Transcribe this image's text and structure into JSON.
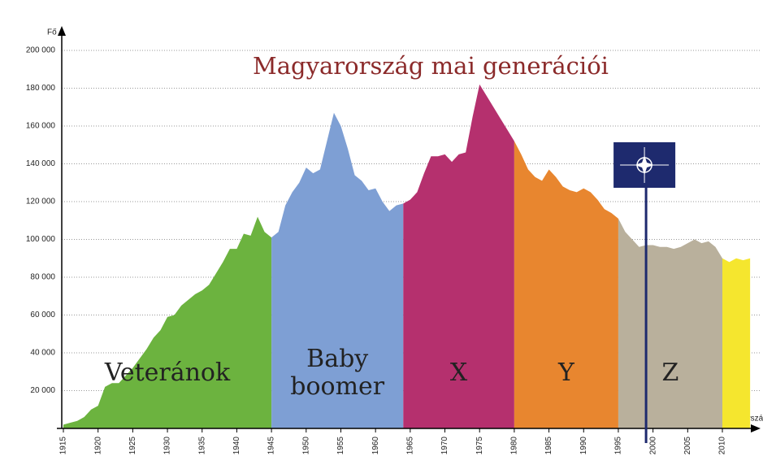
{
  "chart_data": {
    "type": "area",
    "title": "Magyarország mai generációi",
    "x_label": "Évszám",
    "y_label": "Fő",
    "x": [
      1915,
      1916,
      1917,
      1918,
      1919,
      1920,
      1921,
      1922,
      1923,
      1924,
      1925,
      1926,
      1927,
      1928,
      1929,
      1930,
      1931,
      1932,
      1933,
      1934,
      1935,
      1936,
      1937,
      1938,
      1939,
      1940,
      1941,
      1942,
      1943,
      1944,
      1945,
      1946,
      1947,
      1948,
      1949,
      1950,
      1951,
      1952,
      1953,
      1954,
      1955,
      1956,
      1957,
      1958,
      1959,
      1960,
      1961,
      1962,
      1963,
      1964,
      1965,
      1966,
      1967,
      1968,
      1969,
      1970,
      1971,
      1972,
      1973,
      1974,
      1975,
      1976,
      1977,
      1978,
      1979,
      1980,
      1981,
      1982,
      1983,
      1984,
      1985,
      1986,
      1987,
      1988,
      1989,
      1990,
      1991,
      1992,
      1993,
      1994,
      1995,
      1996,
      1997,
      1998,
      1999,
      2000,
      2001,
      2002,
      2003,
      2004,
      2005,
      2006,
      2007,
      2008,
      2009,
      2010,
      2011,
      2012,
      2013,
      2014
    ],
    "values": [
      2000,
      3000,
      4000,
      6000,
      10000,
      12000,
      22000,
      24000,
      24000,
      28000,
      32000,
      37000,
      42000,
      48000,
      52000,
      59000,
      60000,
      65000,
      68000,
      71000,
      73000,
      76000,
      82000,
      88000,
      95000,
      95000,
      103000,
      102000,
      112000,
      104000,
      101000,
      104000,
      118000,
      125000,
      130000,
      138000,
      135000,
      137000,
      152000,
      167000,
      160000,
      148000,
      134000,
      131000,
      126000,
      127000,
      120000,
      115000,
      118000,
      119000,
      121000,
      125000,
      135000,
      144000,
      144000,
      145000,
      141000,
      145000,
      146000,
      165000,
      182000,
      176000,
      170000,
      164000,
      158000,
      152000,
      145000,
      137000,
      133000,
      131000,
      137000,
      133000,
      128000,
      126000,
      125000,
      127000,
      125000,
      121000,
      116000,
      114000,
      111000,
      104000,
      100000,
      96000,
      97000,
      97000,
      96000,
      96000,
      95000,
      96000,
      98000,
      100000,
      98000,
      99000,
      96000,
      90000,
      88000,
      90000,
      89000,
      90000
    ],
    "segments": [
      {
        "label": [
          "Veteránok"
        ],
        "from": 1915,
        "to": 1945,
        "color": "#6cb33f",
        "label_color": "#2e8b3e"
      },
      {
        "label": [
          "Baby",
          "boomer"
        ],
        "from": 1945,
        "to": 1964,
        "color": "#7e9fd4",
        "label_color": "#2a5fb0"
      },
      {
        "label": [
          "X"
        ],
        "from": 1964,
        "to": 1980,
        "color": "#b5306e",
        "label_color": "#7a1020"
      },
      {
        "label": [
          "Y"
        ],
        "from": 1980,
        "to": 1995,
        "color": "#e8862f",
        "label_color": "#b35a20"
      },
      {
        "label": [
          "Z"
        ],
        "from": 1995,
        "to": 2010,
        "color": "#b9b09c",
        "label_color": "#6b655a"
      },
      {
        "from": 2010,
        "to": 2014,
        "color": "#f5e62e"
      }
    ],
    "xlim": [
      1915,
      2010
    ],
    "xticks": [
      1915,
      1920,
      1925,
      1930,
      1935,
      1940,
      1945,
      1950,
      1955,
      1960,
      1965,
      1970,
      1975,
      1980,
      1985,
      1990,
      1995,
      2000,
      2005,
      2010
    ],
    "ylim": [
      0,
      200000
    ],
    "yticks": [
      {
        "value": 20000,
        "label": "20 000"
      },
      {
        "value": 40000,
        "label": "40 000"
      },
      {
        "value": 60000,
        "label": "60 000"
      },
      {
        "value": 80000,
        "label": "80 000"
      },
      {
        "value": 100000,
        "label": "100 000"
      },
      {
        "value": 120000,
        "label": "120 000"
      },
      {
        "value": 140000,
        "label": "140 000"
      },
      {
        "value": 160000,
        "label": "160 000"
      },
      {
        "value": 180000,
        "label": "180 000"
      },
      {
        "value": 200000,
        "label": "200 000"
      }
    ],
    "grid": true,
    "flag_year": 1999
  }
}
